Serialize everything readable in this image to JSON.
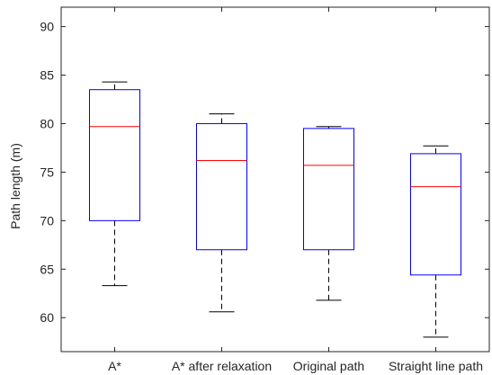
{
  "chart_data": {
    "type": "boxplot",
    "title": "",
    "xlabel": "",
    "ylabel": "Path length (m)",
    "ylim": [
      56.5,
      92
    ],
    "yticks": [
      60,
      65,
      70,
      75,
      80,
      85,
      90
    ],
    "categories": [
      "A*",
      "A* after relaxation",
      "Original path",
      "Straight line path"
    ],
    "boxes": [
      {
        "whisker_low": 63.3,
        "q1": 70.0,
        "median": 79.7,
        "q3": 83.5,
        "whisker_high": 84.3
      },
      {
        "whisker_low": 60.6,
        "q1": 67.0,
        "median": 76.2,
        "q3": 80.0,
        "whisker_high": 81.0
      },
      {
        "whisker_low": 61.8,
        "q1": 67.0,
        "median": 75.7,
        "q3": 79.5,
        "whisker_high": 79.7
      },
      {
        "whisker_low": 58.0,
        "q1": 64.4,
        "median": 73.5,
        "q3": 76.9,
        "whisker_high": 77.7
      }
    ],
    "grid": false,
    "colors": {
      "box": "#0000ff",
      "median": "#ff0000",
      "whisker": "#000000",
      "axis": "#262626"
    }
  }
}
